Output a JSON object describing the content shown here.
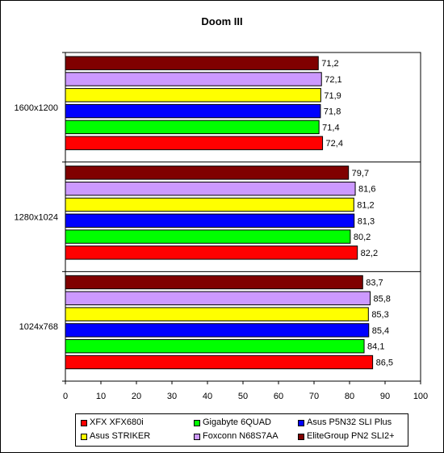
{
  "chart_data": {
    "type": "bar",
    "orientation": "horizontal",
    "title": "Doom III",
    "xlabel": "",
    "ylabel": "",
    "xlim": [
      0,
      100
    ],
    "x_ticks": [
      "0",
      "10",
      "20",
      "30",
      "40",
      "50",
      "60",
      "70",
      "80",
      "90",
      "100"
    ],
    "grid": false,
    "legend_position": "bottom",
    "categories": [
      "1600x1200",
      "1280x1024",
      "1024x768"
    ],
    "series": [
      {
        "name": "XFX XFX680i",
        "color": "#ff0000",
        "values": [
          72.4,
          82.2,
          86.5
        ],
        "labels": [
          "72,4",
          "82,2",
          "86,5"
        ]
      },
      {
        "name": "Gigabyte 6QUAD",
        "color": "#00ff00",
        "values": [
          71.4,
          80.2,
          84.1
        ],
        "labels": [
          "71,4",
          "80,2",
          "84,1"
        ]
      },
      {
        "name": "Asus P5N32 SLI Plus",
        "color": "#0000ff",
        "values": [
          71.8,
          81.3,
          85.4
        ],
        "labels": [
          "71,8",
          "81,3",
          "85,4"
        ]
      },
      {
        "name": "Asus STRIKER",
        "color": "#ffff00",
        "values": [
          71.9,
          81.2,
          85.3
        ],
        "labels": [
          "71,9",
          "81,2",
          "85,3"
        ]
      },
      {
        "name": "Foxconn N68S7AA",
        "color": "#cc99ff",
        "values": [
          72.1,
          81.6,
          85.8
        ],
        "labels": [
          "72,1",
          "81,6",
          "85,8"
        ]
      },
      {
        "name": "EliteGroup PN2 SLI2+",
        "color": "#800000",
        "values": [
          71.2,
          79.7,
          83.7
        ],
        "labels": [
          "71,2",
          "79,7",
          "83,7"
        ]
      }
    ]
  }
}
